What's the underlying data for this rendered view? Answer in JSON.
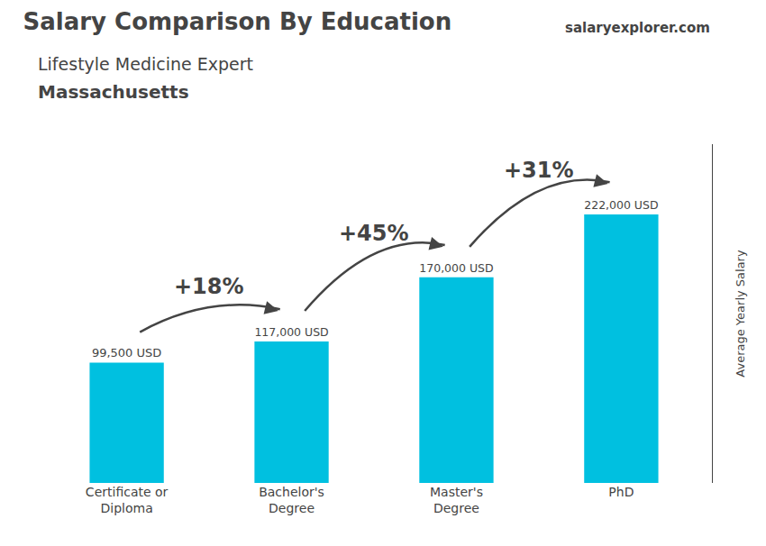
{
  "chart_data": {
    "type": "bar",
    "title": "Salary Comparison By Education",
    "subtitle": [
      "Lifestyle Medicine Expert",
      "Massachusetts"
    ],
    "ylabel": "Average Yearly Salary",
    "categories": [
      "Certificate or\nDiploma",
      "Bachelor's\nDegree",
      "Master's\nDegree",
      "PhD"
    ],
    "values": [
      99500,
      117000,
      170000,
      222000
    ],
    "value_labels": [
      "99,500 USD",
      "117,000 USD",
      "170,000 USD",
      "222,000 USD"
    ],
    "data_labels": true,
    "color": "#00c0e0",
    "ylim": [
      0,
      280000
    ],
    "grid": false,
    "tick_labels": "x",
    "annotations": [
      {
        "text": "+18%",
        "from": "Certificate or\nDiploma",
        "to": "Bachelor's\nDegree"
      },
      {
        "text": "+45%",
        "from": "Bachelor's\nDegree",
        "to": "Master's\nDegree"
      },
      {
        "text": "+31%",
        "from": "Master's\nDegree",
        "to": "PhD"
      },
      {
        "text": "salaryexplorer.com"
      }
    ]
  }
}
